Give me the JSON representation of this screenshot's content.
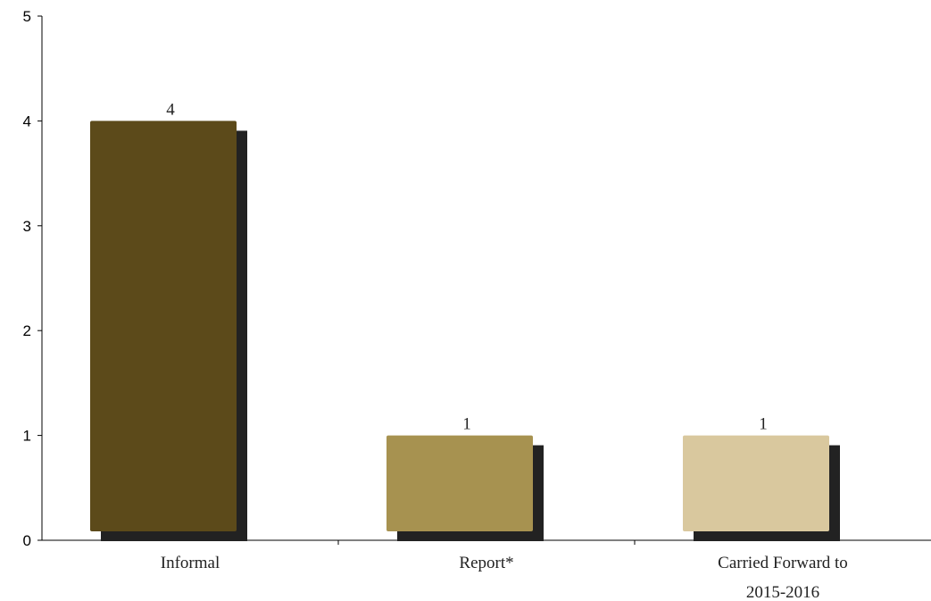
{
  "chart_data": {
    "type": "bar",
    "categories": [
      [
        "Informal"
      ],
      [
        "Report*"
      ],
      [
        "Carried Forward to",
        "2015-2016"
      ]
    ],
    "values": [
      4,
      1,
      1
    ],
    "data_labels": [
      "4",
      "1",
      "1"
    ],
    "bar_colors": [
      "#5c4a1a",
      "#a79250",
      "#d9c89e"
    ],
    "shadow_color": "#222222",
    "ylim": [
      0,
      5
    ],
    "yticks": [
      0,
      1,
      2,
      3,
      4,
      5
    ],
    "grid": false,
    "title": "",
    "xlabel": "",
    "ylabel": ""
  }
}
